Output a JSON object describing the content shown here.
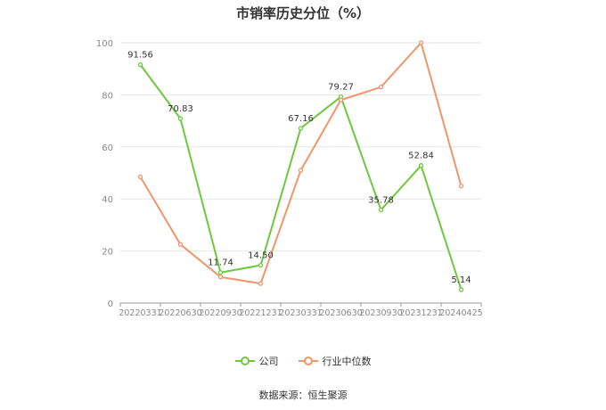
{
  "chart_data": {
    "type": "line",
    "title": "市销率历史分位（%）",
    "source": "数据来源：恒生聚源",
    "categories": [
      "20220331",
      "20220630",
      "20220930",
      "20221231",
      "20230331",
      "20230630",
      "20230930",
      "20231231",
      "20240425"
    ],
    "yticks": [
      "0",
      "20",
      "40",
      "60",
      "80",
      "100"
    ],
    "ylim": [
      0,
      100
    ],
    "grid": true,
    "legend_position": "bottom",
    "series": [
      {
        "name": "公司",
        "color": "#6dc83a",
        "values": [
          91.56,
          70.83,
          11.74,
          14.5,
          67.16,
          79.27,
          35.78,
          52.84,
          5.14
        ],
        "labels": [
          "91.56",
          "70.83",
          "11.74",
          "14.50",
          "67.16",
          "79.27",
          "35.78",
          "52.84",
          "5.14"
        ]
      },
      {
        "name": "行业中位数",
        "color": "#f0956a",
        "values": [
          48.5,
          22.5,
          10,
          7.5,
          51,
          78,
          83,
          100,
          45
        ]
      }
    ]
  }
}
